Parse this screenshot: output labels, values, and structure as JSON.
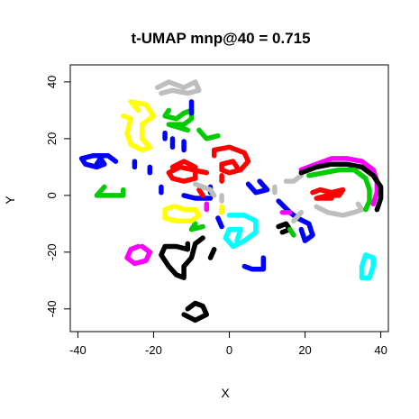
{
  "chart_data": {
    "type": "scatter",
    "title": "t-UMAP mnp@40 = 0.715",
    "xlabel": "X",
    "ylabel": "Y",
    "xlim": [
      -42,
      42
    ],
    "ylim": [
      -48,
      46
    ],
    "xticks": [
      -40,
      -20,
      0,
      20,
      40
    ],
    "yticks": [
      -40,
      -20,
      0,
      20,
      40
    ],
    "xtick_labels": [
      "-40",
      "-20",
      "0",
      "20",
      "40"
    ],
    "ytick_labels": [
      "-40",
      "-20",
      "0",
      "20",
      "40"
    ],
    "grid": false,
    "legend": "none",
    "colors": {
      "black": "#000000",
      "red": "#ff0000",
      "green": "#00cc00",
      "blue": "#0000ff",
      "cyan": "#00ffff",
      "magenta": "#ff00ff",
      "yellow": "#ffff00",
      "gray": "#bebebe"
    },
    "clusters": [
      {
        "color": "gray",
        "shape": "polyline",
        "points": [
          [
            -19,
            38
          ],
          [
            -16,
            40
          ],
          [
            -12,
            38
          ],
          [
            -9,
            40
          ],
          [
            -8,
            37
          ],
          [
            -11,
            36
          ],
          [
            -15,
            37
          ],
          [
            -18,
            36
          ]
        ]
      },
      {
        "color": "yellow",
        "shape": "polyline",
        "points": [
          [
            -24,
            30
          ],
          [
            -26,
            33
          ],
          [
            -22,
            32
          ],
          [
            -20,
            28
          ],
          [
            -23,
            25
          ],
          [
            -23,
            20
          ],
          [
            -21,
            17
          ],
          [
            -23,
            16
          ],
          [
            -26,
            18
          ],
          [
            -27,
            22
          ],
          [
            -26,
            27
          ],
          [
            -28,
            28
          ]
        ]
      },
      {
        "color": "green",
        "shape": "polyline",
        "points": [
          [
            -16,
            30
          ],
          [
            -17,
            28
          ],
          [
            -14,
            27
          ],
          [
            -12,
            29
          ],
          [
            -10,
            30
          ],
          [
            -10,
            27
          ],
          [
            -12,
            25
          ],
          [
            -16,
            25
          ],
          [
            -11,
            23
          ]
        ]
      },
      {
        "color": "green",
        "shape": "polyline",
        "points": [
          [
            -8,
            23
          ],
          [
            -6,
            20
          ],
          [
            -3,
            21
          ]
        ]
      },
      {
        "color": "blue",
        "shape": "polyline",
        "points": [
          [
            -10,
            33
          ],
          [
            -10,
            29
          ]
        ]
      },
      {
        "color": "blue",
        "shape": "polyline",
        "points": [
          [
            -15,
            20
          ],
          [
            -15,
            17
          ]
        ]
      },
      {
        "color": "blue",
        "shape": "polyline",
        "points": [
          [
            -12,
            19
          ],
          [
            -12,
            16
          ]
        ]
      },
      {
        "color": "blue",
        "shape": "polyline",
        "points": [
          [
            -17,
            22
          ],
          [
            -17,
            20
          ]
        ]
      },
      {
        "color": "blue",
        "shape": "polyline",
        "points": [
          [
            -30,
            12
          ],
          [
            -32,
            14
          ],
          [
            -36,
            14
          ],
          [
            -39,
            13
          ],
          [
            -38,
            11
          ],
          [
            -35,
            10
          ],
          [
            -33,
            11
          ],
          [
            -34,
            13
          ],
          [
            -35,
            11
          ]
        ]
      },
      {
        "color": "blue",
        "shape": "polyline",
        "points": [
          [
            -25,
            12
          ],
          [
            -25,
            10
          ]
        ]
      },
      {
        "color": "blue",
        "shape": "polyline",
        "points": [
          [
            -21,
            10
          ],
          [
            -21,
            8
          ]
        ]
      },
      {
        "color": "blue",
        "shape": "polyline",
        "points": [
          [
            -18,
            3
          ],
          [
            -18,
            1
          ]
        ]
      },
      {
        "color": "blue",
        "shape": "polyline",
        "points": [
          [
            -5,
            3
          ],
          [
            -5,
            1
          ]
        ]
      },
      {
        "color": "blue",
        "shape": "polyline",
        "points": [
          [
            5,
            4
          ],
          [
            7,
            1
          ],
          [
            10,
            2
          ],
          [
            8,
            5
          ]
        ]
      },
      {
        "color": "blue",
        "shape": "polyline",
        "points": [
          [
            13,
            -2
          ],
          [
            16,
            -6
          ],
          [
            18,
            -8
          ],
          [
            21,
            -10
          ],
          [
            22,
            -14
          ],
          [
            20,
            -16
          ],
          [
            19,
            -12
          ]
        ]
      },
      {
        "color": "blue",
        "shape": "polyline",
        "points": [
          [
            -12,
            0
          ],
          [
            -9,
            -1
          ],
          [
            -5,
            -1
          ]
        ]
      },
      {
        "color": "blue",
        "shape": "polyline",
        "points": [
          [
            -3,
            -8
          ],
          [
            -2,
            -11
          ]
        ]
      },
      {
        "color": "blue",
        "shape": "polyline",
        "points": [
          [
            4,
            -25
          ],
          [
            6,
            -26
          ],
          [
            9,
            -26
          ],
          [
            9,
            -22
          ]
        ]
      },
      {
        "color": "green",
        "shape": "polyline",
        "points": [
          [
            -33,
            3
          ],
          [
            -35,
            0
          ],
          [
            -31,
            0
          ],
          [
            -28,
            0
          ],
          [
            -28,
            2
          ]
        ]
      },
      {
        "color": "red",
        "shape": "polyline",
        "points": [
          [
            -15,
            10
          ],
          [
            -12,
            12
          ],
          [
            -9,
            10
          ],
          [
            -9,
            6
          ],
          [
            -12,
            5
          ],
          [
            -15,
            6
          ],
          [
            -16,
            8
          ],
          [
            -13,
            10
          ],
          [
            -6,
            8
          ]
        ]
      },
      {
        "color": "red",
        "shape": "polyline",
        "points": [
          [
            -4,
            14
          ],
          [
            -4,
            16
          ],
          [
            0,
            17
          ],
          [
            4,
            15
          ],
          [
            5,
            12
          ],
          [
            3,
            9
          ],
          [
            0,
            8
          ],
          [
            -2,
            9
          ],
          [
            -2,
            11
          ],
          [
            1,
            12
          ],
          [
            2,
            10
          ]
        ]
      },
      {
        "color": "red",
        "shape": "polyline",
        "points": [
          [
            -2,
            7
          ],
          [
            -2,
            5
          ]
        ]
      },
      {
        "color": "red",
        "shape": "polyline",
        "points": [
          [
            -8,
            2
          ],
          [
            -7,
            0
          ]
        ]
      },
      {
        "color": "red",
        "shape": "polyline",
        "points": [
          [
            22,
            1
          ],
          [
            24,
            2
          ],
          [
            27,
            1
          ],
          [
            30,
            2
          ],
          [
            29,
            0
          ],
          [
            26,
            0
          ],
          [
            23,
            -1
          ],
          [
            27,
            -1
          ]
        ]
      },
      {
        "color": "gray",
        "shape": "polyline",
        "points": [
          [
            -9,
            4
          ],
          [
            -7,
            3
          ],
          [
            -5,
            2
          ],
          [
            -4,
            0
          ]
        ]
      },
      {
        "color": "gray",
        "shape": "polyline",
        "points": [
          [
            -2,
            0
          ],
          [
            -2,
            -2
          ]
        ]
      },
      {
        "color": "gray",
        "shape": "polyline",
        "points": [
          [
            15,
            5
          ],
          [
            17,
            5
          ],
          [
            19,
            7
          ]
        ]
      },
      {
        "color": "gray",
        "shape": "polyline",
        "points": [
          [
            12,
            3
          ],
          [
            12,
            1
          ]
        ]
      },
      {
        "color": "gray",
        "shape": "polyline",
        "points": [
          [
            23,
            -4
          ],
          [
            26,
            -6
          ],
          [
            30,
            -7
          ],
          [
            33,
            -6
          ],
          [
            35,
            -5
          ],
          [
            34,
            -3
          ]
        ]
      },
      {
        "color": "gray",
        "shape": "polyline",
        "points": [
          [
            19,
            -6
          ],
          [
            17,
            -9
          ]
        ]
      },
      {
        "color": "magenta",
        "shape": "polyline",
        "points": [
          [
            -6,
            -3
          ],
          [
            -6,
            -5
          ]
        ]
      },
      {
        "color": "magenta",
        "shape": "polyline",
        "points": [
          [
            -2,
            -5
          ],
          [
            -2,
            -6
          ]
        ]
      },
      {
        "color": "magenta",
        "shape": "polyline",
        "points": [
          [
            14,
            -6
          ],
          [
            16,
            -6
          ]
        ]
      },
      {
        "color": "magenta",
        "shape": "polyline",
        "points": [
          [
            19,
            9
          ],
          [
            23,
            11
          ],
          [
            27,
            13
          ],
          [
            31,
            13
          ],
          [
            35,
            12
          ],
          [
            38,
            9
          ],
          [
            39,
            5
          ],
          [
            39,
            1
          ],
          [
            38,
            -3
          ]
        ]
      },
      {
        "color": "magenta",
        "shape": "polyline",
        "points": [
          [
            -23,
            -18
          ],
          [
            -21,
            -20
          ],
          [
            -22,
            -23
          ],
          [
            -25,
            -24
          ],
          [
            -27,
            -22
          ],
          [
            -26,
            -19
          ],
          [
            -24,
            -18
          ]
        ]
      },
      {
        "color": "black",
        "shape": "polyline",
        "points": [
          [
            19,
            8
          ],
          [
            23,
            10
          ],
          [
            27,
            11
          ],
          [
            31,
            11
          ],
          [
            35,
            10
          ],
          [
            38,
            7
          ],
          [
            40,
            3
          ],
          [
            40,
            -1
          ],
          [
            39,
            -5
          ]
        ]
      },
      {
        "color": "black",
        "shape": "polyline",
        "points": [
          [
            13,
            -11
          ],
          [
            15,
            -10
          ],
          [
            16,
            -12
          ],
          [
            14,
            -13
          ]
        ]
      },
      {
        "color": "green",
        "shape": "polyline",
        "points": [
          [
            21,
            7
          ],
          [
            25,
            8
          ],
          [
            29,
            9
          ],
          [
            33,
            9
          ],
          [
            36,
            6
          ],
          [
            37,
            2
          ],
          [
            37,
            -2
          ],
          [
            36,
            -5
          ]
        ]
      },
      {
        "color": "green",
        "shape": "polyline",
        "points": [
          [
            16,
            -12
          ],
          [
            17,
            -14
          ]
        ]
      },
      {
        "color": "green",
        "shape": "polyline",
        "points": [
          [
            -9,
            -10
          ],
          [
            -10,
            -12
          ],
          [
            -7,
            -11
          ]
        ]
      },
      {
        "color": "yellow",
        "shape": "polyline",
        "points": [
          [
            -14,
            -4
          ],
          [
            -12,
            -5
          ],
          [
            -9,
            -5
          ],
          [
            -8,
            -7
          ],
          [
            -10,
            -9
          ],
          [
            -14,
            -9
          ],
          [
            -17,
            -8
          ],
          [
            -17,
            -5
          ],
          [
            -15,
            -4
          ]
        ]
      },
      {
        "color": "yellow",
        "shape": "polyline",
        "points": [
          [
            -2,
            -4
          ],
          [
            -2,
            -6
          ]
        ]
      },
      {
        "color": "cyan",
        "shape": "polyline",
        "points": [
          [
            0,
            -7
          ],
          [
            4,
            -7
          ],
          [
            7,
            -9
          ],
          [
            7,
            -13
          ],
          [
            4,
            -16
          ],
          [
            1,
            -18
          ],
          [
            -1,
            -15
          ],
          [
            0,
            -12
          ],
          [
            3,
            -12
          ],
          [
            2,
            -16
          ]
        ]
      },
      {
        "color": "cyan",
        "shape": "polyline",
        "points": [
          [
            36,
            -21
          ],
          [
            38,
            -22
          ],
          [
            38,
            -25
          ],
          [
            37,
            -29
          ],
          [
            35,
            -29
          ],
          [
            35,
            -25
          ],
          [
            36,
            -21
          ]
        ]
      },
      {
        "color": "black",
        "shape": "polyline",
        "points": [
          [
            -11,
            -17
          ],
          [
            -11,
            -19
          ],
          [
            -14,
            -18
          ],
          [
            -17,
            -18
          ],
          [
            -18,
            -21
          ],
          [
            -16,
            -25
          ],
          [
            -14,
            -28
          ],
          [
            -12,
            -29
          ],
          [
            -12,
            -25
          ],
          [
            -10,
            -22
          ],
          [
            -9,
            -17
          ],
          [
            -7,
            -15
          ]
        ]
      },
      {
        "color": "black",
        "shape": "polyline",
        "points": [
          [
            -4,
            -19
          ],
          [
            -5,
            -22
          ]
        ]
      },
      {
        "color": "black",
        "shape": "polyline",
        "points": [
          [
            -11,
            -40
          ],
          [
            -9,
            -38
          ],
          [
            -7,
            -39
          ],
          [
            -6,
            -42
          ],
          [
            -9,
            -44
          ],
          [
            -12,
            -42
          ]
        ]
      }
    ]
  }
}
